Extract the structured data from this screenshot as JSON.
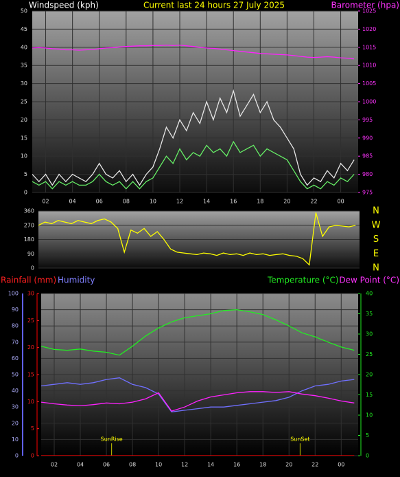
{
  "chart_data": [
    {
      "type": "line",
      "title": "Current last 24 hours 27 July 2025",
      "ylabel": "Windspeed (kph)",
      "y2label": "Barometer (hpa)",
      "x": [
        1,
        1.5,
        2,
        2.5,
        3,
        3.5,
        4,
        4.5,
        5,
        5.5,
        6,
        6.5,
        7,
        7.5,
        8,
        8.5,
        9,
        9.5,
        10,
        10.5,
        11,
        11.5,
        12,
        12.5,
        13,
        13.5,
        14,
        14.5,
        15,
        15.5,
        16,
        16.5,
        17,
        17.5,
        18,
        18.5,
        19,
        19.5,
        20,
        20.5,
        21,
        21.5,
        22,
        22.5,
        23,
        23.5,
        24,
        24.5,
        25
      ],
      "xlim": [
        1.0,
        25.3
      ],
      "xticks": [
        {
          "value": 2,
          "label": "02"
        },
        {
          "value": 4,
          "label": "04"
        },
        {
          "value": 6,
          "label": "06"
        },
        {
          "value": 8,
          "label": "08"
        },
        10,
        12,
        14,
        16,
        18,
        20,
        22,
        {
          "value": 24,
          "label": "00"
        }
      ],
      "ylim": [
        0,
        50
      ],
      "yticks": [
        0,
        5,
        10,
        15,
        20,
        25,
        30,
        35,
        40,
        45,
        50
      ],
      "y2lim": [
        975,
        1025
      ],
      "y2ticks": [
        975,
        980,
        985,
        990,
        995,
        1000,
        1005,
        1010,
        1015,
        1020,
        1025
      ],
      "grid": true,
      "series": [
        {
          "color": "#e6e6e6",
          "values": [
            5,
            3,
            5,
            2,
            5,
            3,
            5,
            4,
            3,
            5,
            8,
            5,
            4,
            6,
            3,
            5,
            2,
            5,
            7,
            12,
            18,
            15,
            20,
            17,
            22,
            19,
            25,
            20,
            26,
            22,
            28,
            21,
            24,
            27,
            22,
            25,
            20,
            18,
            15,
            12,
            5,
            2,
            4,
            3,
            6,
            4,
            8,
            6,
            9
          ]
        },
        {
          "color": "#66ee66",
          "values": [
            3,
            2,
            3,
            1,
            3,
            2,
            3,
            2,
            2,
            3,
            5,
            3,
            2,
            3,
            1,
            3,
            1,
            3,
            4,
            7,
            10,
            8,
            12,
            9,
            11,
            10,
            13,
            11,
            12,
            10,
            14,
            11,
            12,
            13,
            10,
            12,
            11,
            10,
            9,
            6,
            3,
            1,
            2,
            1,
            3,
            2,
            4,
            3,
            5
          ]
        },
        {
          "color": "#ff22ff",
          "axis": "y2",
          "values": [
            1014.8,
            1014.9,
            1014.8,
            1014.6,
            1014.5,
            1014.3,
            1014.3,
            1014.2,
            1014.3,
            1014.4,
            1014.6,
            1014.8,
            1014.9,
            1015.1,
            1015.2,
            1015.3,
            1015.4,
            1015.4,
            1015.5,
            1015.5,
            1015.6,
            1015.5,
            1015.6,
            1015.4,
            1015.2,
            1015.0,
            1014.8,
            1014.7,
            1014.5,
            1014.3,
            1014.1,
            1013.9,
            1013.7,
            1013.5,
            1013.3,
            1013.2,
            1013.1,
            1013.0,
            1012.9,
            1012.7,
            1012.5,
            1012.3,
            1012.2,
            1012.3,
            1012.4,
            1012.3,
            1012.1,
            1012.0,
            1011.8
          ]
        }
      ]
    },
    {
      "type": "line",
      "x": [
        1,
        1.5,
        2,
        2.5,
        3,
        3.5,
        4,
        4.5,
        5,
        5.5,
        6,
        6.5,
        7,
        7.5,
        8,
        8.5,
        9,
        9.5,
        10,
        10.5,
        11,
        11.5,
        12,
        12.5,
        13,
        13.5,
        14,
        14.5,
        15,
        15.5,
        16,
        16.5,
        17,
        17.5,
        18,
        18.5,
        19,
        19.5,
        20,
        20.5,
        21,
        21.5,
        22,
        22.5,
        23,
        23.5,
        24,
        24.5,
        25
      ],
      "xlim": [
        1.0,
        25.3
      ],
      "ylim": [
        0,
        360
      ],
      "yticks": [
        0,
        90,
        180,
        270,
        360
      ],
      "compass": [
        "N",
        "E",
        "S",
        "W",
        "N"
      ],
      "grid": true,
      "series": [
        {
          "color": "#ffff00",
          "values": [
            270,
            290,
            280,
            300,
            290,
            280,
            300,
            290,
            280,
            300,
            310,
            290,
            250,
            100,
            240,
            220,
            250,
            200,
            230,
            180,
            120,
            100,
            95,
            90,
            85,
            95,
            90,
            80,
            95,
            85,
            90,
            80,
            95,
            85,
            90,
            80,
            85,
            90,
            80,
            75,
            60,
            20,
            350,
            200,
            260,
            270,
            265,
            260,
            270
          ]
        }
      ]
    },
    {
      "type": "line",
      "x": [
        1,
        2,
        3,
        4,
        5,
        6,
        7,
        8,
        9,
        10,
        11,
        12,
        13,
        14,
        15,
        16,
        17,
        18,
        19,
        20,
        21,
        22,
        23,
        24,
        25
      ],
      "xlim": [
        1.0,
        25.3
      ],
      "xticks": [
        {
          "value": 2,
          "label": "02"
        },
        {
          "value": 4,
          "label": "04"
        },
        {
          "value": 6,
          "label": "06"
        },
        {
          "value": 8,
          "label": "08"
        },
        10,
        12,
        14,
        16,
        18,
        20,
        22,
        {
          "value": 24,
          "label": "00"
        }
      ],
      "ylim": [
        0,
        100
      ],
      "yticks": [
        0,
        10,
        20,
        30,
        40,
        50,
        60,
        70,
        80,
        90,
        100
      ],
      "y2lim": [
        0,
        40
      ],
      "y2ticks": [
        0,
        5,
        10,
        15,
        20,
        25,
        30,
        35,
        40
      ],
      "y3lim": [
        0,
        30
      ],
      "y3ticks": [
        0,
        5,
        10,
        15,
        20,
        25,
        30
      ],
      "grid": true,
      "annotations": [
        {
          "text": "SunRise",
          "x": 6.4
        },
        {
          "text": "SunSet",
          "x": 20.85
        }
      ],
      "series": [
        {
          "name": "Rainfall (mm)",
          "color": "#ff0000",
          "axis": "y3",
          "values": [
            0,
            0,
            0,
            0,
            0,
            0,
            0,
            0,
            0,
            0,
            0,
            0,
            0,
            0,
            0,
            0,
            0,
            0,
            0,
            0,
            0,
            0,
            0,
            0,
            0
          ]
        },
        {
          "name": "Humidity",
          "color": "#7070ff",
          "values": [
            43,
            44,
            45,
            44,
            45,
            47,
            48,
            44,
            42,
            38,
            27,
            28,
            29,
            30,
            30,
            31,
            32,
            33,
            34,
            36,
            40,
            43,
            44,
            46,
            47
          ]
        },
        {
          "name": "Temperature (°C)",
          "color": "#22ee22",
          "axis": "y2",
          "values": [
            27,
            26.2,
            26,
            26.3,
            25.8,
            25.5,
            24.8,
            27,
            29.5,
            31.5,
            33,
            34,
            34.5,
            35,
            35.8,
            36,
            35.5,
            34.8,
            33.5,
            32,
            30.3,
            29.3,
            28,
            26.8,
            26
          ]
        },
        {
          "name": "Dew Point (°C)",
          "color": "#ff22ff",
          "axis": "y2",
          "values": [
            13.2,
            12.8,
            12.5,
            12.3,
            12.6,
            13,
            12.8,
            13.2,
            14,
            15.5,
            11,
            12,
            13.5,
            14.5,
            15,
            15.5,
            15.8,
            15.8,
            15.6,
            15.8,
            15.2,
            14.8,
            14.2,
            13.5,
            13
          ]
        }
      ]
    }
  ]
}
